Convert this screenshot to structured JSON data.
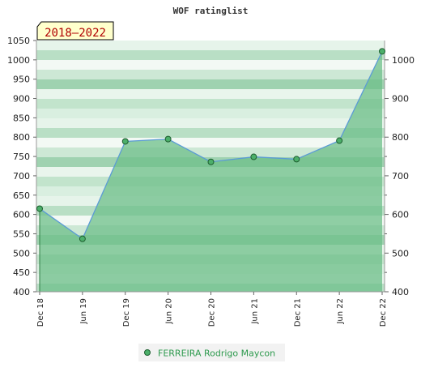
{
  "title": "WOF ratinglist",
  "period_badge": "2018–2022",
  "chart_data": {
    "type": "area",
    "title": "WOF ratinglist",
    "categories": [
      "Dec 18",
      "Jun 19",
      "Dec 19",
      "Jun 20",
      "Dec 20",
      "Jun 21",
      "Dec 21",
      "Jun 22",
      "Dec 22"
    ],
    "series": [
      {
        "name": "FERREIRA Rodrigo Maycon",
        "values": [
          615,
          537,
          789,
          795,
          736,
          749,
          743,
          791,
          1022
        ]
      }
    ],
    "left_axis": {
      "ylim": [
        400,
        1050
      ],
      "ticks": [
        400,
        450,
        500,
        550,
        600,
        650,
        700,
        750,
        800,
        850,
        900,
        950,
        1000,
        1050
      ]
    },
    "right_axis": {
      "ylim": [
        400,
        1050
      ],
      "ticks": [
        400,
        500,
        600,
        700,
        800,
        900,
        1000
      ]
    },
    "grid": false,
    "legend_position": "bottom-center"
  },
  "colors": {
    "line": "#5b9bd5",
    "fill": "#6dbf8a",
    "marker": "#4caf6a",
    "badge_bg": "#ffffcc",
    "legend_bg": "#f2f2f2"
  }
}
